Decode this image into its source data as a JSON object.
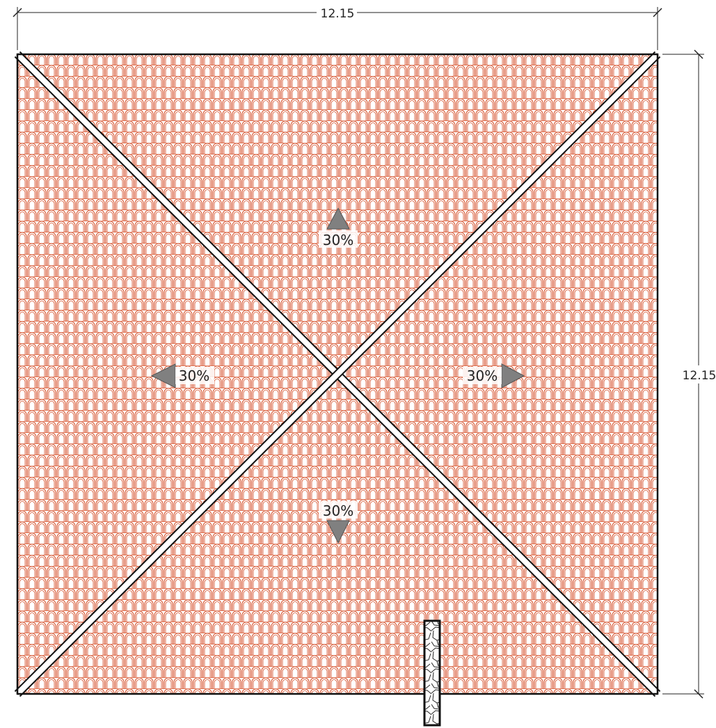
{
  "drawing": {
    "type": "hip roof plan",
    "tile_color": "#d6502a",
    "ridge_color": "#ffffff",
    "outline_color": "#111111",
    "arrow_color": "#808080"
  },
  "dimensions": {
    "width_label": "12.15",
    "height_label": "12.15"
  },
  "slopes": {
    "top": {
      "label": "30%",
      "direction": "up"
    },
    "left": {
      "label": "30%",
      "direction": "left"
    },
    "right": {
      "label": "30%",
      "direction": "right"
    },
    "bottom": {
      "label": "30%",
      "direction": "down"
    }
  },
  "chimney": {
    "fill": "stone pattern"
  }
}
